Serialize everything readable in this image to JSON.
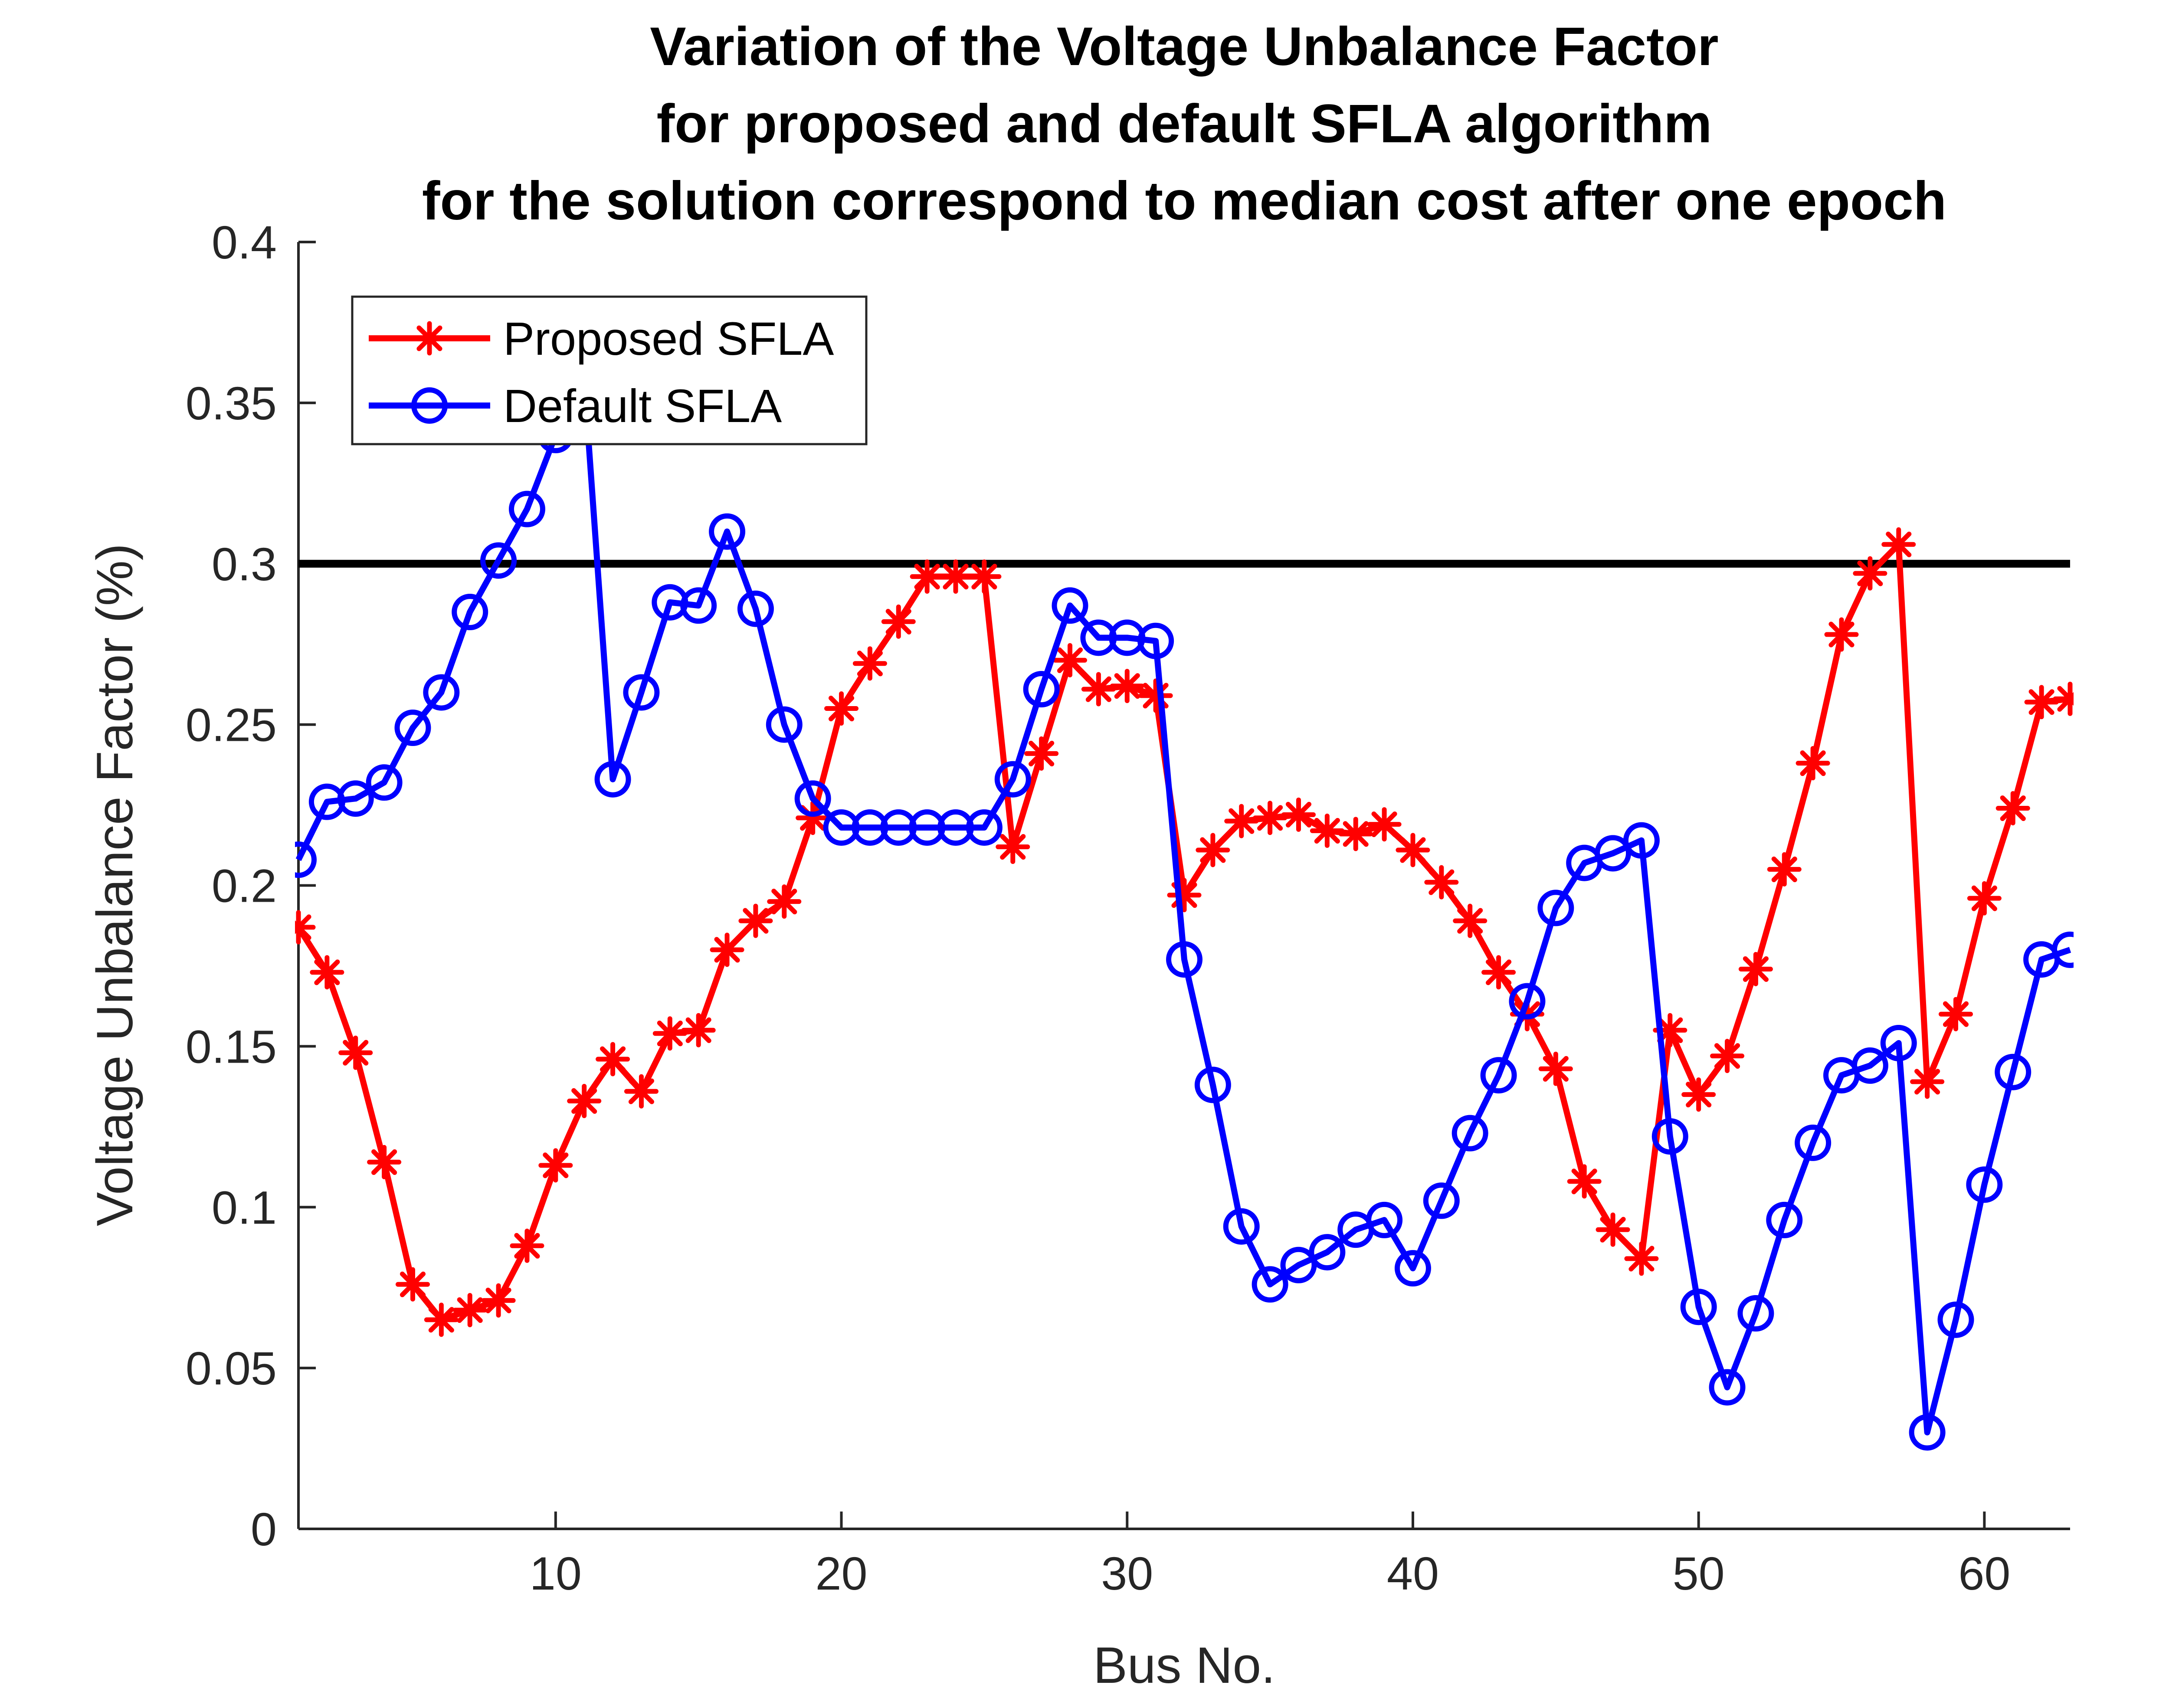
{
  "chart_data": {
    "type": "line",
    "title_lines": [
      "Variation of the Voltage Unbalance Factor",
      "for proposed and default SFLA algorithm",
      "for the solution correspond to median cost after one epoch"
    ],
    "xlabel": "Bus No.",
    "ylabel": "Voltage Unbalance Factor (%)",
    "xlim": [
      1,
      63
    ],
    "ylim": [
      0,
      0.4
    ],
    "x_ticks": [
      "10",
      "20",
      "30",
      "40",
      "50",
      "60"
    ],
    "y_ticks": [
      "0",
      "0.05",
      "0.1",
      "0.15",
      "0.2",
      "0.25",
      "0.3",
      "0.35",
      "0.4"
    ],
    "grid": false,
    "legend_position": "top-left",
    "reference_line": {
      "y": 0.3,
      "color": "#000000"
    },
    "x": [
      1,
      2,
      3,
      4,
      5,
      6,
      7,
      8,
      9,
      10,
      11,
      12,
      13,
      14,
      15,
      16,
      17,
      18,
      19,
      20,
      21,
      22,
      23,
      24,
      25,
      26,
      27,
      28,
      29,
      30,
      31,
      32,
      33,
      34,
      35,
      36,
      37,
      38,
      39,
      40,
      41,
      42,
      43,
      44,
      45,
      46,
      47,
      48,
      49,
      50,
      51,
      52,
      53,
      54,
      55,
      56,
      57,
      58,
      59,
      60,
      61,
      62,
      63
    ],
    "series": [
      {
        "name": "Proposed SFLA",
        "color": "#ff0000",
        "marker": "asterisk",
        "values": [
          0.187,
          0.173,
          0.148,
          0.114,
          0.076,
          0.065,
          0.068,
          0.071,
          0.088,
          0.113,
          0.133,
          0.146,
          0.136,
          0.154,
          0.155,
          0.18,
          0.189,
          0.195,
          0.221,
          0.255,
          0.269,
          0.282,
          0.296,
          0.296,
          0.296,
          0.212,
          0.241,
          0.27,
          0.261,
          0.262,
          0.259,
          0.197,
          0.211,
          0.22,
          0.221,
          0.222,
          0.217,
          0.216,
          0.219,
          0.211,
          0.201,
          0.189,
          0.173,
          0.16,
          0.143,
          0.108,
          0.093,
          0.084,
          0.155,
          0.135,
          0.147,
          0.174,
          0.205,
          0.238,
          0.278,
          0.297,
          0.306,
          0.139,
          0.16,
          0.196,
          0.224,
          0.257,
          0.258
        ]
      },
      {
        "name": "Default SFLA",
        "color": "#0000ff",
        "marker": "circle",
        "values": [
          0.208,
          0.226,
          0.227,
          0.232,
          0.249,
          0.26,
          0.285,
          0.301,
          0.317,
          0.34,
          0.357,
          0.233,
          0.26,
          0.288,
          0.287,
          0.31,
          0.286,
          0.25,
          0.227,
          0.218,
          0.218,
          0.218,
          0.218,
          0.218,
          0.218,
          0.233,
          0.261,
          0.287,
          0.277,
          0.277,
          0.276,
          0.177,
          0.138,
          0.094,
          0.076,
          0.082,
          0.086,
          0.093,
          0.096,
          0.081,
          0.102,
          0.123,
          0.141,
          0.164,
          0.193,
          0.207,
          0.21,
          0.214,
          0.122,
          0.069,
          0.044,
          0.067,
          0.096,
          0.12,
          0.141,
          0.144,
          0.151,
          0.03,
          0.065,
          0.107,
          0.142,
          0.177,
          0.18
        ]
      }
    ]
  }
}
